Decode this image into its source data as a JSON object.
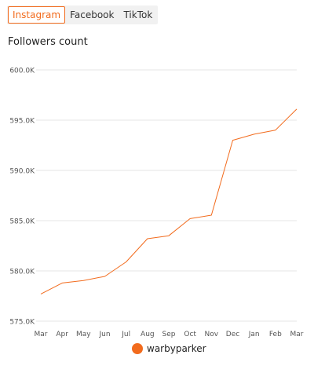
{
  "tabs": [
    {
      "label": "Instagram",
      "active": true
    },
    {
      "label": "Facebook",
      "active": false
    },
    {
      "label": "TikTok",
      "active": false
    }
  ],
  "chart_title": "Followers count",
  "colors": {
    "accent": "#f26b1d",
    "grid": "#e6e6e6",
    "axis_text": "#555555"
  },
  "chart_data": {
    "type": "line",
    "title": "Followers count",
    "xlabel": "",
    "ylabel": "",
    "categories": [
      "Mar",
      "Apr",
      "May",
      "Jun",
      "Jul",
      "Aug",
      "Sep",
      "Oct",
      "Nov",
      "Dec",
      "Jan",
      "Feb",
      "Mar"
    ],
    "series": [
      {
        "name": "warbyparker",
        "values": [
          577700,
          578800,
          579050,
          579450,
          580900,
          583200,
          583500,
          585200,
          585550,
          593000,
          593600,
          594000,
          596100
        ]
      }
    ],
    "ylim": [
      575000,
      600000
    ],
    "yticks": [
      575000,
      580000,
      585000,
      590000,
      595000,
      600000
    ],
    "ytick_labels": [
      "575.0K",
      "580.0K",
      "585.0K",
      "590.0K",
      "595.0K",
      "600.0K"
    ],
    "grid": "horizontal",
    "legend": "bottom-center"
  },
  "legend": {
    "label": "warbyparker"
  }
}
